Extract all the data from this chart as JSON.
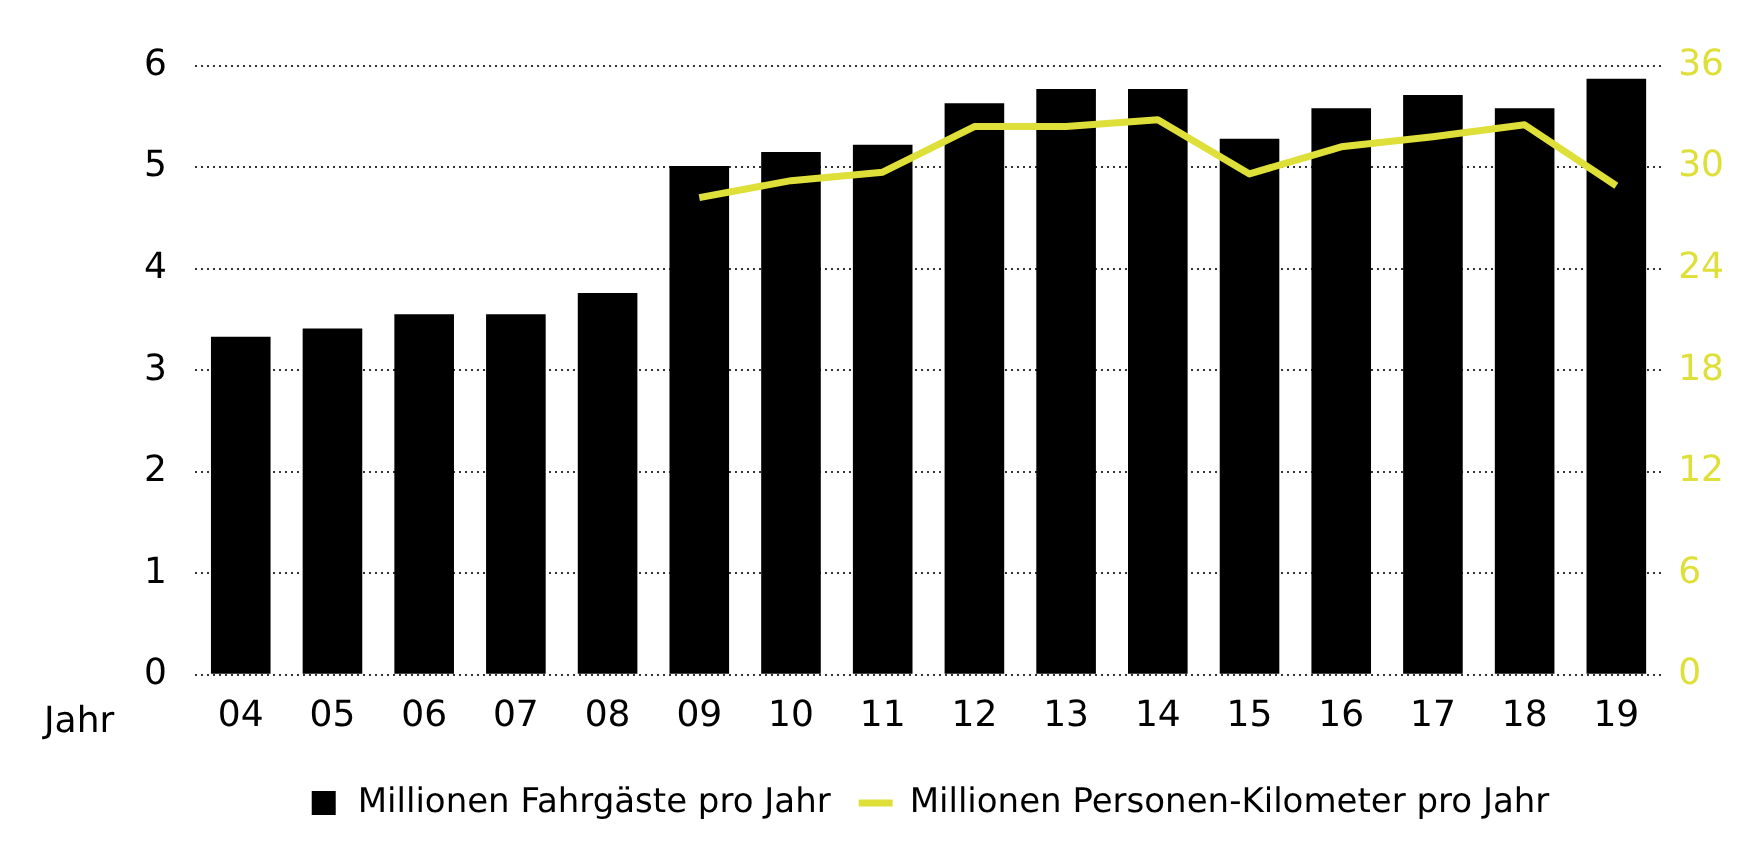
{
  "chart_data": {
    "type": "bar",
    "xlabel": "Jahr",
    "categories": [
      "04",
      "05",
      "06",
      "07",
      "08",
      "09",
      "10",
      "11",
      "12",
      "13",
      "14",
      "15",
      "16",
      "17",
      "18",
      "19"
    ],
    "series": [
      {
        "name": "Millionen Fahrgäste pro Jahr",
        "color": "#000000",
        "values": [
          3.33,
          3.41,
          3.55,
          3.55,
          3.76,
          5.01,
          5.15,
          5.22,
          5.63,
          5.77,
          5.77,
          5.28,
          5.58,
          5.71,
          5.58,
          5.87
        ]
      },
      {
        "name": "Millionen Personen-Kilometer pro Jahr",
        "type": "line",
        "axis": "y2",
        "color": "#dfdf3a",
        "values": [
          null,
          null,
          null,
          null,
          null,
          28.2,
          29.2,
          29.7,
          32.4,
          32.4,
          32.8,
          29.6,
          31.2,
          31.8,
          32.5,
          28.9
        ]
      }
    ],
    "ylim": [
      0,
      6
    ],
    "yticks": [
      0,
      1,
      2,
      3,
      4,
      5,
      6
    ],
    "y2lim": [
      0,
      36
    ],
    "y2ticks": [
      0,
      6,
      12,
      18,
      24,
      30,
      36
    ],
    "grid": "y",
    "legend": "bottom",
    "marker": "none",
    "line_style": "solid"
  }
}
